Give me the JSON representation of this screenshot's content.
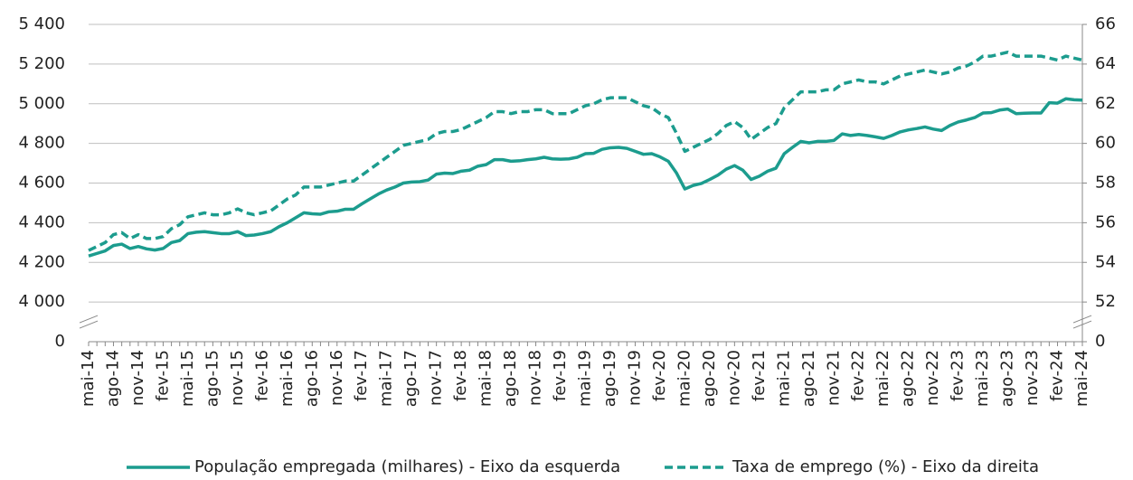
{
  "chart_data": {
    "type": "line",
    "categories": [
      "mai-14",
      null,
      null,
      "ago-14",
      null,
      null,
      "nov-14",
      null,
      null,
      "fev-15",
      null,
      null,
      "mai-15",
      null,
      null,
      "ago-15",
      null,
      null,
      "nov-15",
      null,
      null,
      "fev-16",
      null,
      null,
      "mai-16",
      null,
      null,
      "ago-16",
      null,
      null,
      "nov-16",
      null,
      null,
      "fev-17",
      null,
      null,
      "mai-17",
      null,
      null,
      "ago-17",
      null,
      null,
      "nov-17",
      null,
      null,
      "fev-18",
      null,
      null,
      "mai-18",
      null,
      null,
      "ago-18",
      null,
      null,
      "nov-18",
      null,
      null,
      "fev-19",
      null,
      null,
      "mai-19",
      null,
      null,
      "ago-19",
      null,
      null,
      "nov-19",
      null,
      null,
      "fev-20",
      null,
      null,
      "mai-20",
      null,
      null,
      "ago-20",
      null,
      null,
      "nov-20",
      null,
      null,
      "fev-21",
      null,
      null,
      "mai-21",
      null,
      null,
      "ago-21",
      null,
      null,
      "nov-21",
      null,
      null,
      "fev-22",
      null,
      null,
      "mai-22",
      null,
      null,
      "ago-22",
      null,
      null,
      "nov-22",
      null,
      null,
      "fev-23",
      null,
      null,
      "mai-23",
      null,
      null,
      "ago-23",
      null,
      null,
      "nov-23",
      null,
      null,
      "fev-24",
      null,
      null,
      "mai-24"
    ],
    "series": [
      {
        "name": "População empregada (milhares) - Eixo da esquerda",
        "color": "#1c9c8e",
        "line_style": "solid",
        "axis": "y",
        "values": [
          4232,
          4245,
          4258,
          4285,
          4292,
          4270,
          4280,
          4268,
          4262,
          4270,
          4300,
          4310,
          4345,
          4352,
          4355,
          4350,
          4345,
          4345,
          4355,
          4335,
          4338,
          4345,
          4355,
          4380,
          4400,
          4425,
          4450,
          4445,
          4443,
          4455,
          4458,
          4468,
          4468,
          4495,
          4520,
          4545,
          4565,
          4580,
          4600,
          4605,
          4607,
          4615,
          4645,
          4650,
          4648,
          4660,
          4665,
          4685,
          4693,
          4718,
          4718,
          4710,
          4712,
          4718,
          4722,
          4730,
          4722,
          4720,
          4722,
          4730,
          4748,
          4750,
          4770,
          4778,
          4780,
          4775,
          4760,
          4745,
          4748,
          4732,
          4710,
          4650,
          4570,
          4588,
          4598,
          4618,
          4640,
          4670,
          4688,
          4665,
          4618,
          4635,
          4660,
          4675,
          4748,
          4780,
          4810,
          4803,
          4810,
          4810,
          4815,
          4848,
          4840,
          4845,
          4840,
          4833,
          4825,
          4840,
          4858,
          4868,
          4875,
          4883,
          4872,
          4865,
          4890,
          4908,
          4918,
          4930,
          4953,
          4955,
          4968,
          4973,
          4950,
          4952,
          4953,
          4953,
          5005,
          5003,
          5025,
          5020,
          5018
        ]
      },
      {
        "name": "Taxa de emprego (%) - Eixo da direita",
        "color": "#1c9c8e",
        "line_style": "dashed",
        "axis": "y2",
        "values": [
          54.6,
          54.8,
          55.0,
          55.4,
          55.5,
          55.2,
          55.4,
          55.2,
          55.2,
          55.3,
          55.7,
          55.9,
          56.3,
          56.4,
          56.5,
          56.4,
          56.4,
          56.5,
          56.7,
          56.5,
          56.4,
          56.5,
          56.6,
          56.9,
          57.2,
          57.4,
          57.8,
          57.8,
          57.8,
          57.9,
          58.0,
          58.1,
          58.1,
          58.4,
          58.7,
          59.0,
          59.3,
          59.6,
          59.9,
          60.0,
          60.1,
          60.2,
          60.5,
          60.6,
          60.6,
          60.7,
          60.9,
          61.1,
          61.3,
          61.6,
          61.6,
          61.5,
          61.6,
          61.6,
          61.7,
          61.7,
          61.5,
          61.5,
          61.5,
          61.7,
          61.9,
          62.0,
          62.2,
          62.3,
          62.3,
          62.3,
          62.1,
          61.9,
          61.8,
          61.5,
          61.3,
          60.5,
          59.6,
          59.8,
          60.0,
          60.2,
          60.5,
          60.9,
          61.1,
          60.8,
          60.2,
          60.5,
          60.8,
          61.0,
          61.8,
          62.2,
          62.6,
          62.6,
          62.6,
          62.7,
          62.7,
          63.0,
          63.1,
          63.2,
          63.1,
          63.1,
          63.0,
          63.2,
          63.4,
          63.5,
          63.6,
          63.7,
          63.6,
          63.5,
          63.6,
          63.8,
          63.9,
          64.1,
          64.4,
          64.4,
          64.5,
          64.6,
          64.4,
          64.4,
          64.4,
          64.4,
          64.3,
          64.2,
          64.4,
          64.3,
          64.2
        ]
      }
    ],
    "ylim": [
      0,
      5400
    ],
    "yticks": [
      0,
      {
        "value": 4000,
        "label": "4 000"
      },
      {
        "value": 4200,
        "label": "4 200"
      },
      {
        "value": 4400,
        "label": "4 400"
      },
      {
        "value": 4600,
        "label": "4 600"
      },
      {
        "value": 4800,
        "label": "4 800"
      },
      {
        "value": 5000,
        "label": "5 000"
      },
      {
        "value": 5200,
        "label": "5 200"
      },
      {
        "value": 5400,
        "label": "5 400"
      }
    ],
    "ybreak": [
      0,
      3800
    ],
    "y2lim": [
      0,
      66
    ],
    "y2ticks": [
      0,
      52,
      54,
      56,
      58,
      60,
      62,
      64,
      66
    ],
    "y2break": [
      0,
      50
    ],
    "grid": true,
    "legend": "bottom"
  }
}
